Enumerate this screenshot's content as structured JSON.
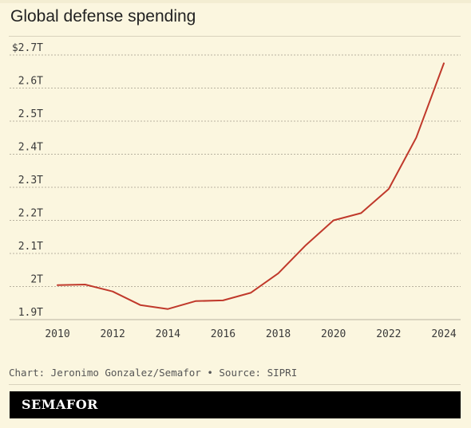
{
  "chart_data": {
    "type": "line",
    "title": "Global defense spending",
    "xlabel": "",
    "ylabel": "",
    "x_ticks": [
      "2010",
      "2012",
      "2014",
      "2016",
      "2018",
      "2020",
      "2022",
      "2024"
    ],
    "y_ticks": [
      "$2.7T",
      "2.6T",
      "2.5T",
      "2.4T",
      "2.3T",
      "2.2T",
      "2.1T",
      "2T",
      "1.9T"
    ],
    "y_tick_values": [
      2.7,
      2.6,
      2.5,
      2.4,
      2.3,
      2.2,
      2.1,
      2.0,
      1.9
    ],
    "xlim": [
      2010,
      2024
    ],
    "ylim": [
      1.9,
      2.7
    ],
    "grid": true,
    "line_color": "#c0392b",
    "series": [
      {
        "name": "",
        "x": [
          2010,
          2011,
          2012,
          2013,
          2014,
          2015,
          2016,
          2017,
          2018,
          2019,
          2020,
          2021,
          2022,
          2023,
          2024
        ],
        "y": [
          2.004,
          2.006,
          1.985,
          1.944,
          1.932,
          1.956,
          1.958,
          1.981,
          2.04,
          2.125,
          2.2,
          2.222,
          2.295,
          2.45,
          2.675
        ]
      }
    ]
  },
  "footer": {
    "credit": "Chart: Jeronimo Gonzalez/Semafor • Source: SIPRI",
    "brand": "SEMAFOR"
  },
  "colors": {
    "background": "#fbf6df",
    "line": "#c0392b",
    "grid": "#b8b2a0"
  }
}
